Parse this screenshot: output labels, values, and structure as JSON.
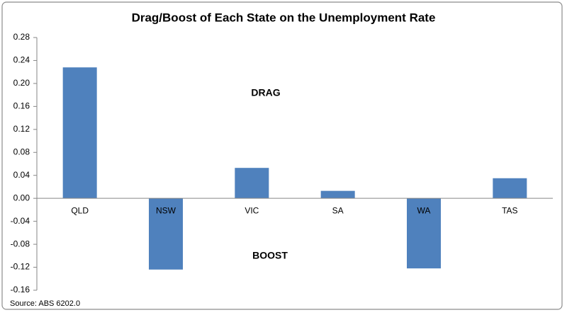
{
  "chart_data": {
    "type": "bar",
    "title": "Drag/Boost of Each State on the Unemployment Rate",
    "categories": [
      "QLD",
      "NSW",
      "VIC",
      "SA",
      "WA",
      "TAS"
    ],
    "values": [
      0.228,
      -0.124,
      0.053,
      0.013,
      -0.122,
      0.035
    ],
    "color": "#4f81bd",
    "ylim": [
      -0.16,
      0.28
    ],
    "yticks": [
      -0.16,
      -0.12,
      -0.08,
      -0.04,
      {
        "value": 0,
        "label": "0.00"
      },
      0.04,
      0.08,
      0.12,
      0.16,
      {
        "value": 0.2,
        "label": "0.20"
      },
      0.24,
      0.28
    ],
    "grid": false,
    "annotations": [
      "DRAG",
      "BOOST"
    ],
    "source": "Source: ABS 6202.0"
  }
}
